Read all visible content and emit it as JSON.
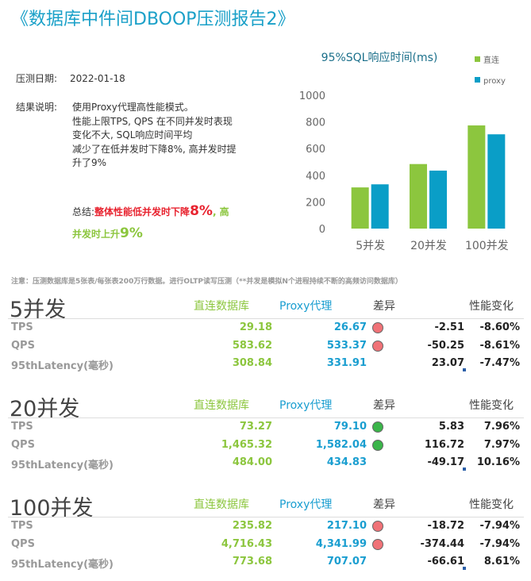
{
  "header": {
    "title": "《数据库中件间DBOOP压测报告2》"
  },
  "info": {
    "date_label": "压测日期:",
    "date": "2022-01-18",
    "result_label": "结果说明:",
    "result_lines": [
      "使用Proxy代理高性能模式。",
      "性能上限TPS, QPS 在不同并发时表现",
      "变化不大, SQL响应时间平均",
      "减少了在低并发时下降8%, 高并发时提",
      "升了9%"
    ],
    "summary": {
      "label": "总结:",
      "text1": "整体性能低并发时下降",
      "pct1": "8%",
      "text2": ", 高",
      "text3": "并发时上升",
      "pct2": "9%"
    }
  },
  "chart_data": {
    "type": "bar",
    "title": "95%SQL响应时间(ms)",
    "categories": [
      "5并发",
      "20并发",
      "100并发"
    ],
    "series": [
      {
        "name": "直连",
        "color": "#8cc63e",
        "values": [
          308.84,
          484.0,
          773.68
        ]
      },
      {
        "name": "proxy",
        "color": "#0a9ec7",
        "values": [
          331.91,
          434.83,
          707.07
        ]
      }
    ],
    "ylim": [
      0,
      1000
    ],
    "yticks": [
      0,
      200,
      400,
      600,
      800,
      1000
    ],
    "legend": "right"
  },
  "note": "注意：压测数据库是5张表/每张表200万行数据。进行OLTP读写压测（**并发是模拟N个进程持续不断的高频访问数据库）",
  "sections": [
    {
      "title": "5并发",
      "columns": [
        "直连数据库",
        "Proxy代理",
        "差异",
        "性能变化"
      ],
      "rows": [
        {
          "metric": "TPS",
          "direct": "29.18",
          "proxy": "26.67",
          "indicator": "red",
          "diff": "-2.51",
          "change": "-8.60%"
        },
        {
          "metric": "QPS",
          "direct": "583.62",
          "proxy": "533.37",
          "indicator": "red",
          "diff": "-50.25",
          "change": "-8.61%"
        },
        {
          "metric": "95thLatency(毫秒)",
          "direct": "308.84",
          "proxy": "331.91",
          "diff": "23.07",
          "change": "-7.47%"
        }
      ]
    },
    {
      "title": "20并发",
      "columns": [
        "直连数据库",
        "Proxy代理",
        "差异",
        "性能变化"
      ],
      "rows": [
        {
          "metric": "TPS",
          "direct": "73.27",
          "proxy": "79.10",
          "indicator": "green",
          "diff": "5.83",
          "change": "7.96%"
        },
        {
          "metric": "QPS",
          "direct": "1,465.32",
          "proxy": "1,582.04",
          "indicator": "green",
          "diff": "116.72",
          "change": "7.97%"
        },
        {
          "metric": "95thLatency(毫秒)",
          "direct": "484.00",
          "proxy": "434.83",
          "diff": "-49.17",
          "change": "10.16%"
        }
      ]
    },
    {
      "title": "100并发",
      "columns": [
        "直连数据库",
        "Proxy代理",
        "差异",
        "性能变化"
      ],
      "rows": [
        {
          "metric": "TPS",
          "direct": "235.82",
          "proxy": "217.10",
          "indicator": "red",
          "diff": "-18.72",
          "change": "-7.94%"
        },
        {
          "metric": "QPS",
          "direct": "4,716.43",
          "proxy": "4,341.99",
          "indicator": "red",
          "diff": "-374.44",
          "change": "-7.94%"
        },
        {
          "metric": "95thLatency(毫秒)",
          "direct": "773.68",
          "proxy": "707.07",
          "diff": "-66.61",
          "change": "8.61%"
        }
      ]
    }
  ]
}
